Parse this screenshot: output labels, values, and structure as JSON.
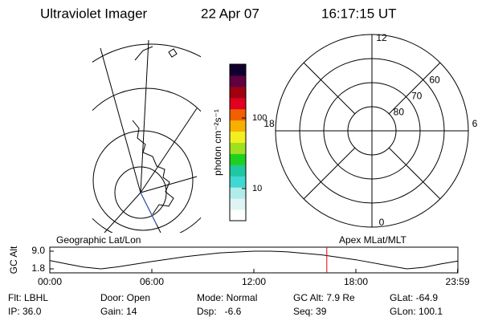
{
  "header": {
    "title": "Ultraviolet Imager",
    "date": "22 Apr 07",
    "time": "16:17:15 UT"
  },
  "colorbar": {
    "label": "photon cm⁻²s⁻¹",
    "lim": [
      3.5,
      580
    ],
    "log": true,
    "ticks": [
      10,
      100
    ],
    "colors": [
      "#ffffff",
      "#e0f4f4",
      "#b0ecec",
      "#40d8d0",
      "#20c8a0",
      "#20d020",
      "#a0e020",
      "#f0f020",
      "#f8b000",
      "#f06000",
      "#e00020",
      "#a00010",
      "#600040",
      "#100030"
    ]
  },
  "polar": {
    "hour_ticks": [
      12,
      18,
      6,
      0
    ],
    "lat_lim": [
      90,
      50
    ],
    "lat_ticks": [
      80,
      70,
      60
    ]
  },
  "labels": {
    "geographic": "Geographic Lat/Lon",
    "apex": "Apex MLat/MLT"
  },
  "altitude": {
    "ylabel": "GC Alt",
    "ylim": [
      1.8,
      9.0
    ],
    "yticks": [
      {
        "value": 9.0,
        "label": "9.0"
      },
      1.8
    ],
    "xlim": [
      0,
      24
    ],
    "xticks": [
      {
        "value": 0,
        "label": "00:00"
      },
      {
        "value": 6,
        "label": "06:00"
      },
      {
        "value": 12,
        "label": "12:00"
      },
      {
        "value": 18,
        "label": "18:00"
      },
      {
        "value": 23.98,
        "label": "23:59"
      }
    ],
    "x": [
      0,
      1,
      2,
      3,
      4,
      6,
      8,
      10,
      12,
      13,
      14,
      16,
      18,
      20,
      21,
      22,
      23,
      24
    ],
    "values": [
      5.2,
      3.8,
      2.5,
      1.8,
      2.6,
      4.8,
      6.8,
      8.3,
      9.0,
      9.0,
      8.7,
      7.5,
      5.5,
      3.0,
      1.8,
      2.4,
      3.8,
      5.0
    ],
    "marker_x": 16.29,
    "marker_color": "#e00000"
  },
  "footer": {
    "rows": [
      [
        "Flt: LBHL",
        "Door: Open",
        "Mode: Normal",
        "GC Alt: 7.9 Re",
        "GLat: -64.9"
      ],
      [
        "IP: 36.0",
        "Gain: 14",
        "Dsp:   -6.6",
        "Seq: 39",
        "GLon: 100.1"
      ]
    ]
  }
}
